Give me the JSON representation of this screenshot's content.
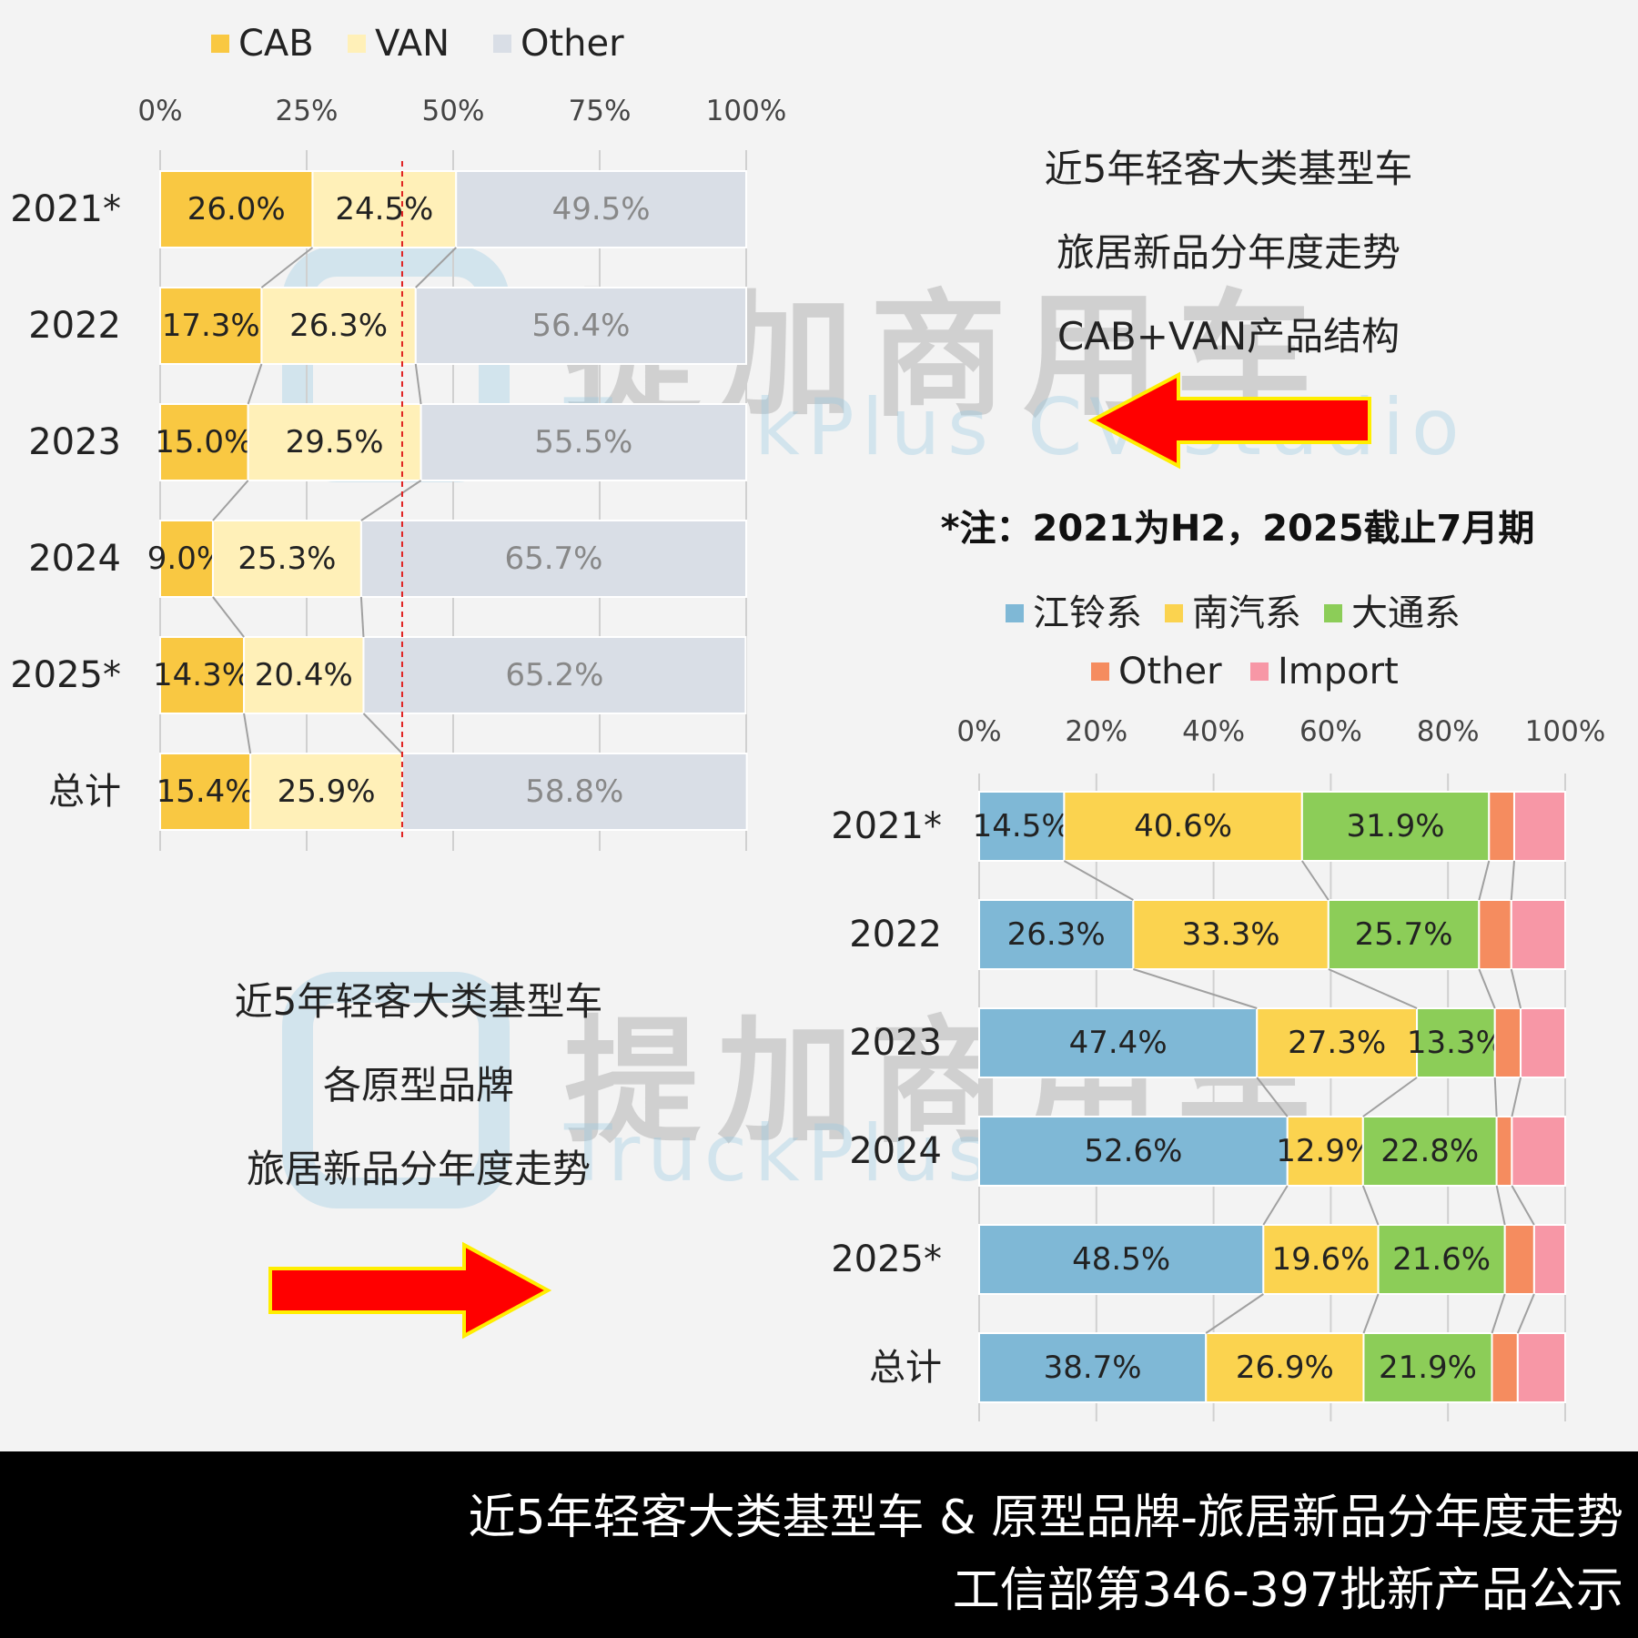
{
  "title1": {
    "lines": [
      "近5年轻客大类基型车",
      "旅居新品分年度走势",
      "CAB+VAN产品结构"
    ]
  },
  "note": "*注：2021为H2，2025截止7月期",
  "title2": {
    "lines": [
      "近5年轻客大类基型车",
      "各原型品牌",
      "旅居新品分年度走势"
    ]
  },
  "footer": {
    "line1": "近5年轻客大类基型车 & 原型品牌-旅居新品分年度走势",
    "line2": "工信部第346-397批新产品公示"
  },
  "watermark": {
    "text_cn": "提加商用车",
    "text_en": "TruckPlus CV studio"
  },
  "colors": {
    "arrow_fill": "#ff0000",
    "arrow_border": "#ffee00",
    "reference_line": "#e02020"
  },
  "chart_data": [
    {
      "type": "bar",
      "orientation": "horizontal",
      "stacked": "percent",
      "categories": [
        "2021*",
        "2022",
        "2023",
        "2024",
        "2025*",
        "总计"
      ],
      "series": [
        {
          "name": "CAB",
          "color": "#f9c842",
          "values": [
            26.0,
            17.3,
            15.0,
            9.0,
            14.3,
            15.4
          ]
        },
        {
          "name": "VAN",
          "color": "#fff0b8",
          "values": [
            24.5,
            26.3,
            29.5,
            25.3,
            20.4,
            25.9
          ]
        },
        {
          "name": "Other",
          "color": "#d9dee6",
          "values": [
            49.5,
            56.4,
            55.5,
            65.7,
            65.2,
            58.8
          ]
        }
      ],
      "data_labels": [
        [
          "26.0%",
          "17.3%",
          "15.0%",
          "9.0%",
          "14.3%",
          "15.4%"
        ],
        [
          "24.5%",
          "26.3%",
          "29.5%",
          "25.3%",
          "20.4%",
          "25.9%"
        ],
        [
          "49.5%",
          "56.4%",
          "55.5%",
          "65.7%",
          "65.2%",
          "58.8%"
        ]
      ],
      "label_colors": [
        "#222222",
        "#222222",
        "#888888"
      ],
      "xlim": [
        0,
        100
      ],
      "xticks": [
        "0%",
        "25%",
        "50%",
        "75%",
        "100%"
      ],
      "axis_position": "top",
      "reference_line": 41.3,
      "legend": "top-left",
      "grid": true
    },
    {
      "type": "bar",
      "orientation": "horizontal",
      "stacked": "percent",
      "categories": [
        "2021*",
        "2022",
        "2023",
        "2024",
        "2025*",
        "总计"
      ],
      "series": [
        {
          "name": "江铃系",
          "color": "#7fb8d6",
          "values": [
            14.5,
            26.3,
            47.4,
            52.6,
            48.5,
            38.7
          ]
        },
        {
          "name": "南汽系",
          "color": "#fbd34f",
          "values": [
            40.6,
            33.3,
            27.3,
            12.9,
            19.6,
            26.9
          ]
        },
        {
          "name": "大通系",
          "color": "#8ccd58",
          "values": [
            31.9,
            25.7,
            13.3,
            22.8,
            21.6,
            21.9
          ]
        },
        {
          "name": "Other",
          "color": "#f58c5f",
          "values": [
            4.3,
            5.5,
            4.4,
            2.6,
            5.0,
            4.4
          ]
        },
        {
          "name": "Import",
          "color": "#f797a6",
          "values": [
            8.7,
            9.2,
            7.6,
            9.1,
            5.3,
            8.1
          ]
        }
      ],
      "data_labels": [
        [
          "14.5%",
          "26.3%",
          "47.4%",
          "52.6%",
          "48.5%",
          "38.7%"
        ],
        [
          "40.6%",
          "33.3%",
          "27.3%",
          "12.9%",
          "19.6%",
          "26.9%"
        ],
        [
          "31.9%",
          "25.7%",
          "13.3%",
          "22.8%",
          "21.6%",
          "21.9%"
        ],
        [
          "",
          "",
          "",
          "",
          "",
          ""
        ],
        [
          "",
          "",
          "",
          "",
          "",
          ""
        ]
      ],
      "label_colors": [
        "#222222",
        "#222222",
        "#222222",
        "#222222",
        "#222222"
      ],
      "xlim": [
        0,
        100
      ],
      "xticks": [
        "0%",
        "20%",
        "40%",
        "60%",
        "80%",
        "100%"
      ],
      "axis_position": "top",
      "legend": "top-right",
      "grid": true
    }
  ]
}
